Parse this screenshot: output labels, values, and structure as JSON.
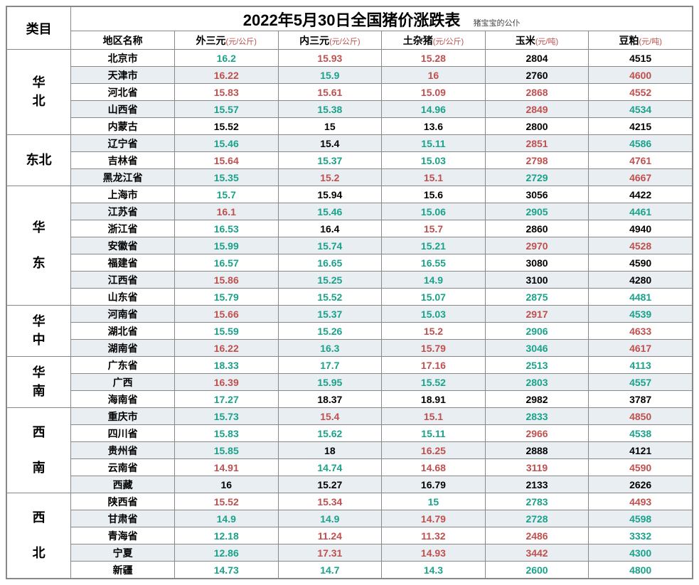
{
  "title": "2022年5月30日全国猪价涨跌表",
  "subtitle": "猪宝宝的公仆",
  "category_label": "类目",
  "headers": {
    "area": "地区名称",
    "c1": {
      "label": "外三元",
      "unit": "(元/公斤)"
    },
    "c2": {
      "label": "内三元",
      "unit": "(元/公斤)"
    },
    "c3": {
      "label": "土杂猪",
      "unit": "(元/公斤)"
    },
    "c4": {
      "label": "玉米",
      "unit": "(元/吨)"
    },
    "c5": {
      "label": "豆粕",
      "unit": "(元/吨)"
    }
  },
  "colors": {
    "black": "#000000",
    "red": "#c0504d",
    "teal": "#1aa28a",
    "alt_row_bg": "#e9eef3"
  },
  "regions": [
    {
      "name": "华\n北",
      "bg": "#ffff00",
      "rows": [
        {
          "area": "北京市",
          "v": [
            [
              "16.2",
              "teal"
            ],
            [
              "15.93",
              "red"
            ],
            [
              "15.28",
              "red"
            ],
            [
              "2804",
              "black"
            ],
            [
              "4515",
              "black"
            ]
          ]
        },
        {
          "area": "天津市",
          "v": [
            [
              "16.22",
              "red"
            ],
            [
              "15.9",
              "teal"
            ],
            [
              "16",
              "red"
            ],
            [
              "2760",
              "black"
            ],
            [
              "4600",
              "red"
            ]
          ]
        },
        {
          "area": "河北省",
          "v": [
            [
              "15.83",
              "red"
            ],
            [
              "15.61",
              "red"
            ],
            [
              "15.09",
              "red"
            ],
            [
              "2868",
              "red"
            ],
            [
              "4552",
              "red"
            ]
          ]
        },
        {
          "area": "山西省",
          "v": [
            [
              "15.57",
              "teal"
            ],
            [
              "15.38",
              "teal"
            ],
            [
              "14.96",
              "teal"
            ],
            [
              "2849",
              "red"
            ],
            [
              "4534",
              "teal"
            ]
          ]
        },
        {
          "area": "内蒙古",
          "v": [
            [
              "15.52",
              "black"
            ],
            [
              "15",
              "black"
            ],
            [
              "13.6",
              "black"
            ],
            [
              "2800",
              "black"
            ],
            [
              "4215",
              "black"
            ]
          ]
        }
      ]
    },
    {
      "name": "东北",
      "bg": "#f4b183",
      "rows": [
        {
          "area": "辽宁省",
          "v": [
            [
              "15.46",
              "teal"
            ],
            [
              "15.4",
              "black"
            ],
            [
              "15.11",
              "teal"
            ],
            [
              "2851",
              "red"
            ],
            [
              "4586",
              "teal"
            ]
          ]
        },
        {
          "area": "吉林省",
          "v": [
            [
              "15.64",
              "red"
            ],
            [
              "15.37",
              "teal"
            ],
            [
              "15.03",
              "teal"
            ],
            [
              "2798",
              "red"
            ],
            [
              "4761",
              "red"
            ]
          ]
        },
        {
          "area": "黑龙江省",
          "v": [
            [
              "15.35",
              "teal"
            ],
            [
              "15.2",
              "red"
            ],
            [
              "15.1",
              "red"
            ],
            [
              "2729",
              "teal"
            ],
            [
              "4667",
              "red"
            ]
          ]
        }
      ]
    },
    {
      "name": "华\n\n东",
      "bg": "#fac7a8",
      "rows": [
        {
          "area": "上海市",
          "v": [
            [
              "15.7",
              "teal"
            ],
            [
              "15.94",
              "black"
            ],
            [
              "15.6",
              "black"
            ],
            [
              "3056",
              "black"
            ],
            [
              "4422",
              "black"
            ]
          ]
        },
        {
          "area": "江苏省",
          "v": [
            [
              "16.1",
              "red"
            ],
            [
              "15.46",
              "teal"
            ],
            [
              "15.06",
              "teal"
            ],
            [
              "2905",
              "teal"
            ],
            [
              "4461",
              "teal"
            ]
          ]
        },
        {
          "area": "浙江省",
          "v": [
            [
              "16.53",
              "teal"
            ],
            [
              "16.4",
              "black"
            ],
            [
              "15.7",
              "red"
            ],
            [
              "2860",
              "black"
            ],
            [
              "4940",
              "black"
            ]
          ]
        },
        {
          "area": "安徽省",
          "v": [
            [
              "15.99",
              "teal"
            ],
            [
              "15.74",
              "teal"
            ],
            [
              "15.21",
              "teal"
            ],
            [
              "2970",
              "red"
            ],
            [
              "4528",
              "red"
            ]
          ]
        },
        {
          "area": "福建省",
          "v": [
            [
              "16.57",
              "teal"
            ],
            [
              "16.65",
              "teal"
            ],
            [
              "16.55",
              "teal"
            ],
            [
              "3080",
              "black"
            ],
            [
              "4590",
              "black"
            ]
          ]
        },
        {
          "area": "江西省",
          "v": [
            [
              "15.86",
              "red"
            ],
            [
              "15.25",
              "teal"
            ],
            [
              "14.9",
              "teal"
            ],
            [
              "3100",
              "black"
            ],
            [
              "4280",
              "black"
            ]
          ]
        },
        {
          "area": "山东省",
          "v": [
            [
              "15.79",
              "teal"
            ],
            [
              "15.52",
              "teal"
            ],
            [
              "15.07",
              "teal"
            ],
            [
              "2875",
              "teal"
            ],
            [
              "4481",
              "teal"
            ]
          ]
        }
      ]
    },
    {
      "name": "华\n中",
      "bg": "#a9d08e",
      "rows": [
        {
          "area": "河南省",
          "v": [
            [
              "15.66",
              "red"
            ],
            [
              "15.37",
              "teal"
            ],
            [
              "15.03",
              "teal"
            ],
            [
              "2917",
              "red"
            ],
            [
              "4539",
              "teal"
            ]
          ]
        },
        {
          "area": "湖北省",
          "v": [
            [
              "15.59",
              "teal"
            ],
            [
              "15.26",
              "teal"
            ],
            [
              "15.2",
              "red"
            ],
            [
              "2906",
              "teal"
            ],
            [
              "4633",
              "red"
            ]
          ]
        },
        {
          "area": "湖南省",
          "v": [
            [
              "16.22",
              "red"
            ],
            [
              "16.3",
              "teal"
            ],
            [
              "15.79",
              "red"
            ],
            [
              "3046",
              "teal"
            ],
            [
              "4617",
              "red"
            ]
          ]
        }
      ]
    },
    {
      "name": "华\n南",
      "bg": "#f4b183",
      "rows": [
        {
          "area": "广东省",
          "v": [
            [
              "18.33",
              "teal"
            ],
            [
              "17.7",
              "teal"
            ],
            [
              "17.16",
              "red"
            ],
            [
              "2513",
              "teal"
            ],
            [
              "4113",
              "teal"
            ]
          ]
        },
        {
          "area": "广西",
          "v": [
            [
              "16.39",
              "red"
            ],
            [
              "15.95",
              "teal"
            ],
            [
              "15.52",
              "teal"
            ],
            [
              "2803",
              "teal"
            ],
            [
              "4557",
              "teal"
            ]
          ]
        },
        {
          "area": "海南省",
          "v": [
            [
              "17.27",
              "teal"
            ],
            [
              "18.37",
              "black"
            ],
            [
              "18.91",
              "black"
            ],
            [
              "2982",
              "black"
            ],
            [
              "3787",
              "black"
            ]
          ]
        }
      ]
    },
    {
      "name": "西\n\n南",
      "bg": "#ffffff",
      "rows": [
        {
          "area": "重庆市",
          "v": [
            [
              "15.73",
              "teal"
            ],
            [
              "15.4",
              "red"
            ],
            [
              "15.1",
              "red"
            ],
            [
              "2833",
              "teal"
            ],
            [
              "4850",
              "red"
            ]
          ]
        },
        {
          "area": "四川省",
          "v": [
            [
              "15.83",
              "teal"
            ],
            [
              "15.62",
              "teal"
            ],
            [
              "15.11",
              "teal"
            ],
            [
              "2966",
              "red"
            ],
            [
              "4538",
              "teal"
            ]
          ]
        },
        {
          "area": "贵州省",
          "v": [
            [
              "15.85",
              "teal"
            ],
            [
              "18",
              "black"
            ],
            [
              "16.25",
              "red"
            ],
            [
              "2888",
              "black"
            ],
            [
              "4121",
              "black"
            ]
          ]
        },
        {
          "area": "云南省",
          "v": [
            [
              "14.91",
              "red"
            ],
            [
              "14.74",
              "teal"
            ],
            [
              "14.68",
              "red"
            ],
            [
              "3119",
              "red"
            ],
            [
              "4590",
              "red"
            ]
          ]
        },
        {
          "area": "西藏",
          "v": [
            [
              "16",
              "black"
            ],
            [
              "15.27",
              "black"
            ],
            [
              "16.79",
              "black"
            ],
            [
              "2133",
              "black"
            ],
            [
              "2626",
              "black"
            ]
          ]
        }
      ]
    },
    {
      "name": "西\n\n北",
      "bg": "#ffc000",
      "rows": [
        {
          "area": "陕西省",
          "v": [
            [
              "15.52",
              "red"
            ],
            [
              "15.34",
              "red"
            ],
            [
              "15",
              "teal"
            ],
            [
              "2783",
              "teal"
            ],
            [
              "4493",
              "red"
            ]
          ]
        },
        {
          "area": "甘肃省",
          "v": [
            [
              "14.9",
              "teal"
            ],
            [
              "14.9",
              "teal"
            ],
            [
              "14.79",
              "red"
            ],
            [
              "2728",
              "teal"
            ],
            [
              "4598",
              "teal"
            ]
          ]
        },
        {
          "area": "青海省",
          "v": [
            [
              "12.18",
              "teal"
            ],
            [
              "11.24",
              "red"
            ],
            [
              "11.32",
              "red"
            ],
            [
              "2486",
              "red"
            ],
            [
              "3332",
              "teal"
            ]
          ]
        },
        {
          "area": "宁夏",
          "v": [
            [
              "12.86",
              "teal"
            ],
            [
              "17.31",
              "red"
            ],
            [
              "14.93",
              "red"
            ],
            [
              "3442",
              "red"
            ],
            [
              "4300",
              "teal"
            ]
          ]
        },
        {
          "area": "新疆",
          "v": [
            [
              "14.73",
              "teal"
            ],
            [
              "14.7",
              "teal"
            ],
            [
              "14.3",
              "teal"
            ],
            [
              "2600",
              "teal"
            ],
            [
              "4800",
              "teal"
            ]
          ]
        }
      ]
    }
  ]
}
